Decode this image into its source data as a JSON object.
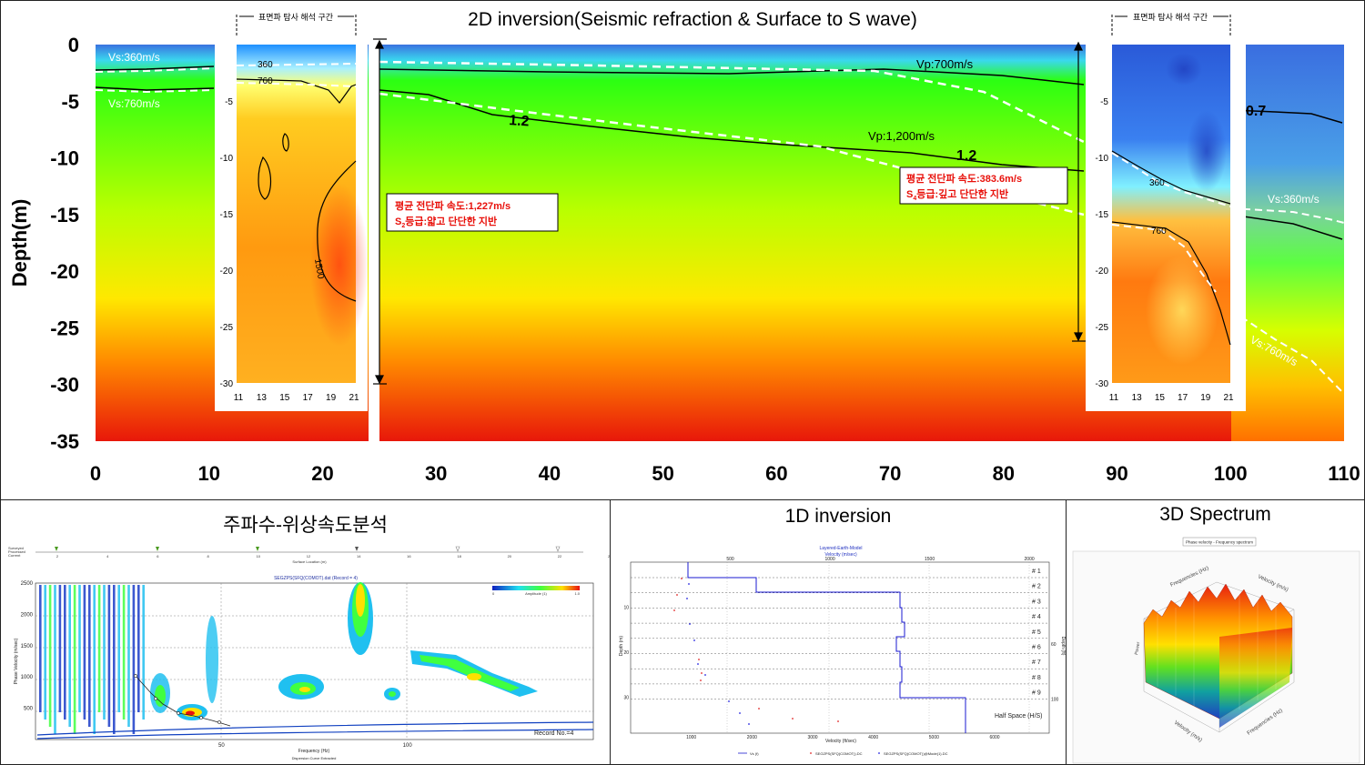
{
  "main": {
    "title": "2D inversion(Seismic refraction & Surface to S wave)",
    "ylabel": "Depth(m)",
    "xticks": [
      "0",
      "10",
      "20",
      "30",
      "40",
      "50",
      "60",
      "70",
      "80",
      "90",
      "100",
      "110"
    ],
    "yticks": [
      "0",
      "-5",
      "-10",
      "-15",
      "-20",
      "-25",
      "-30",
      "-35"
    ],
    "labels": {
      "vs360": "Vs:360m/s",
      "vs760": "Vs:760m/s",
      "vp700": "Vp:700m/s",
      "vp1200": "Vp:1,200m/s",
      "c12a": "1.2",
      "c12b": "1.2",
      "c07": "0.7",
      "vs360r": "Vs:360m/s",
      "vs760r": "Vs:760m/s"
    },
    "inset_left": {
      "header": "표면파 탐사 해석 구간",
      "c360": "360",
      "c760": "760",
      "c1500": "1500",
      "yticks": [
        "-5",
        "-10",
        "-15",
        "-20",
        "-25",
        "-30"
      ],
      "xticks": [
        "11",
        "13",
        "15",
        "17",
        "19",
        "21"
      ]
    },
    "inset_right": {
      "header": "표면파 탐사 해석 구간",
      "c360": "360",
      "c760": "760",
      "yticks": [
        "-5",
        "-10",
        "-15",
        "-20",
        "-25",
        "-30"
      ],
      "xticks": [
        "11",
        "13",
        "15",
        "17",
        "19",
        "21"
      ]
    },
    "box_left": {
      "line1": "평균 전단파 속도:1,227m/s",
      "grade_s": "S",
      "grade_sub": "2",
      "grade_rest": "등급:얇고 단단한 지반"
    },
    "box_right": {
      "line1": "평균 전단파 속도:383.6m/s",
      "grade_s": "S",
      "grade_sub": "4",
      "grade_rest": "등급:깊고 단단한 지반"
    },
    "colors": {
      "red": "#e8190a",
      "yellow": "#ffe800",
      "green": "#22ff00",
      "cyan": "#20d8f0",
      "blue": "#3a7de8"
    }
  },
  "chart_data": [
    {
      "type": "heatmap",
      "title": "2D inversion(Seismic refraction & Surface to S wave)",
      "xlabel": "",
      "ylabel": "Depth(m)",
      "xlim": [
        0,
        110
      ],
      "ylim": [
        -35,
        0
      ],
      "contours": [
        {
          "name": "Vp:700m/s",
          "x": [
            25,
            40,
            60,
            70,
            80,
            87
          ],
          "y": [
            -2.0,
            -2.3,
            -2.4,
            -2.2,
            -2.9,
            -3.5
          ]
        },
        {
          "name": "Vp:1,200m/s",
          "x": [
            25,
            35,
            50,
            60,
            70,
            80,
            87
          ],
          "y": [
            -4.0,
            -5.5,
            -7.6,
            -8.2,
            -8.8,
            -10.0,
            -11.0
          ]
        },
        {
          "name": "Vs:360m/s",
          "x": [
            0,
            10
          ],
          "y": [
            -2.3,
            -2.0
          ]
        },
        {
          "name": "Vs:760m/s",
          "x": [
            0,
            10
          ],
          "y": [
            -3.7,
            -3.9
          ]
        }
      ]
    }
  ],
  "freq": {
    "title": "주파수-위상속도분석",
    "legend_items": [
      "Surveyed",
      "Processed",
      "Current"
    ],
    "surface_xticks": [
      "2",
      "4",
      "6",
      "8",
      "10",
      "12",
      "14",
      "16",
      "18",
      "20",
      "22",
      "24",
      "26"
    ],
    "surface_label": "Surface Location (m)",
    "plot_title": "SEGZPS(SFQ(COMOT).dat (Record = 4)",
    "ylabel": "Phase Velocity (m/sec)",
    "yticks": [
      "2500",
      "2000",
      "1500",
      "1000",
      "500"
    ],
    "xlabel": "Frequency (Hz)",
    "xticks": [
      "50",
      "100"
    ],
    "record": "Record No.=4",
    "dispersion_label": "Dispersion Curve Extracted",
    "colorbar_label": "Amplitude (1)",
    "colorbar_ticks": [
      "0",
      "1.0"
    ]
  },
  "inv1d": {
    "title": "1D inversion",
    "plot_title": "Layered-Earth-Model",
    "top_axis": "Velocity (m/sec)",
    "top_ticks": [
      "500",
      "1000",
      "1500",
      "2000"
    ],
    "bottom_axis": "Velocity (ft/sec)",
    "bottom_ticks": [
      "1000",
      "2000",
      "3000",
      "4000",
      "5000",
      "6000"
    ],
    "ylabel": "Depth (m)",
    "yticks": [
      "10",
      "20",
      "30"
    ],
    "right_label": "Depth (ft)",
    "right_ticks": [
      "60",
      "100"
    ],
    "layers": [
      "# 1",
      "# 2",
      "# 3",
      "# 4",
      "# 5",
      "# 6",
      "# 7",
      "# 8",
      "# 9"
    ],
    "halfspace": "Half Space (H/S)",
    "legend": [
      "Vs (f)",
      "SEGZPS(SFQ(COMOT)).DC",
      "SEGZPS(SFQ(COMOT))@Mode(1).DC"
    ]
  },
  "spec3d": {
    "title": "3D Spectrum",
    "inner_title": "Phase velocity - Frequency spectrum",
    "axis_freq": "Frequencies (Hz)",
    "axis_vel": "Velocity (m/s)",
    "axis_power": "Power"
  }
}
